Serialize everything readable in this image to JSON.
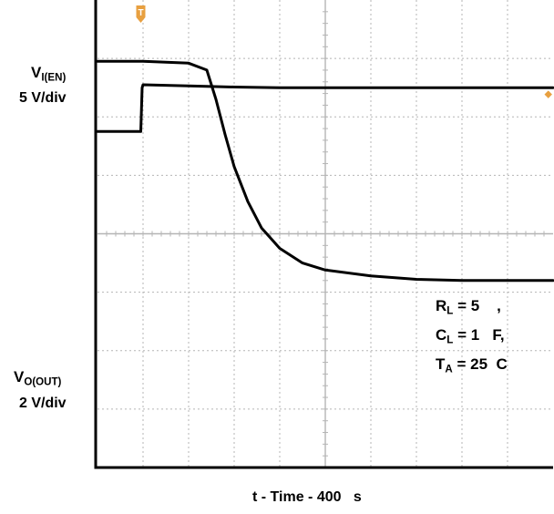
{
  "chart_data": {
    "type": "line",
    "colors": {
      "background": "#ffffff",
      "grid": "#b5b5b5",
      "trace": "#000000",
      "trigger_marker": "#e8a040",
      "frame": "#000000"
    },
    "grid": true,
    "divisions": {
      "x": 10,
      "y": 8
    },
    "xlabel": "t - Time - 400   s",
    "xlim": [
      0,
      10
    ],
    "ylim": [
      0,
      8
    ],
    "trigger_marker": {
      "label": "T",
      "x": 0.95
    },
    "channel_marker": {
      "label": "◆",
      "y": 6.4
    },
    "series": [
      {
        "name_parts": {
          "symbol": "V",
          "subscript": "I(EN)"
        },
        "scale": "5 V/div",
        "x": [
          0,
          0.95,
          0.98,
          1.0,
          2,
          3,
          4,
          5,
          6,
          7,
          8,
          9,
          10
        ],
        "y": [
          5.75,
          5.75,
          6.5,
          6.55,
          6.53,
          6.51,
          6.5,
          6.5,
          6.5,
          6.5,
          6.5,
          6.5,
          6.5
        ]
      },
      {
        "name_parts": {
          "symbol": "V",
          "subscript": "O(OUT)"
        },
        "scale": "2 V/div",
        "x": [
          0,
          1,
          2,
          2.4,
          2.6,
          2.8,
          3.0,
          3.3,
          3.6,
          4.0,
          4.5,
          5.0,
          6.0,
          7.0,
          8.0,
          9.0,
          10.0
        ],
        "y": [
          6.95,
          6.95,
          6.92,
          6.8,
          6.3,
          5.7,
          5.15,
          4.55,
          4.1,
          3.75,
          3.5,
          3.38,
          3.28,
          3.22,
          3.2,
          3.2,
          3.2
        ]
      }
    ],
    "annotations": [
      {
        "symbol": "R",
        "subscript": "L",
        "text": " = 5    ,"
      },
      {
        "symbol": "C",
        "subscript": "L",
        "text": " = 1   F,"
      },
      {
        "symbol": "T",
        "subscript": "A",
        "text": " = 25  C"
      }
    ]
  }
}
